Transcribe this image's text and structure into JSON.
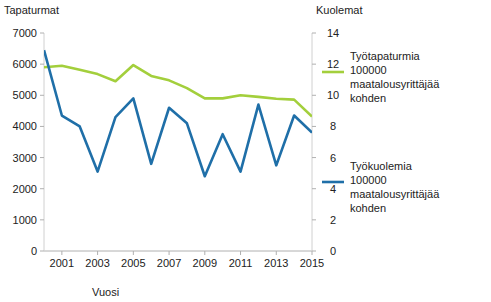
{
  "chart_data": {
    "type": "line",
    "x_label": "Vuosi",
    "y_label": "Tapaturmat",
    "y2_label": "Kuolemat",
    "x": [
      2000,
      2001,
      2002,
      2003,
      2004,
      2005,
      2006,
      2007,
      2008,
      2009,
      2010,
      2011,
      2012,
      2013,
      2014,
      2015
    ],
    "xlim": [
      2000,
      2015
    ],
    "xticks": [
      2001,
      2003,
      2005,
      2007,
      2009,
      2011,
      2013,
      2015
    ],
    "ylim": [
      0,
      7000
    ],
    "yticks": [
      0,
      1000,
      2000,
      3000,
      4000,
      5000,
      6000,
      7000
    ],
    "y2lim": [
      0,
      14
    ],
    "y2ticks": [
      0,
      2,
      4,
      6,
      8,
      10,
      12,
      14
    ],
    "grid": false,
    "legend": "right",
    "series": [
      {
        "name": "Työtapaturmia 100000 maatalousyrittäjää kohden",
        "color": "#a3cf3c",
        "values": [
          5900,
          5950,
          5820,
          5680,
          5450,
          5970,
          5620,
          5480,
          5230,
          4900,
          4900,
          5000,
          4950,
          4890,
          4860,
          4320
        ]
      },
      {
        "name": "Työkuolemia 100000 maatalousyrittäjää kohden",
        "color": "#1f6fa8",
        "axis": "y2",
        "values": [
          12.9,
          8.7,
          8.0,
          5.1,
          8.6,
          9.8,
          5.6,
          9.2,
          8.2,
          4.8,
          7.5,
          5.1,
          9.4,
          5.5,
          8.7,
          7.6
        ]
      }
    ]
  }
}
